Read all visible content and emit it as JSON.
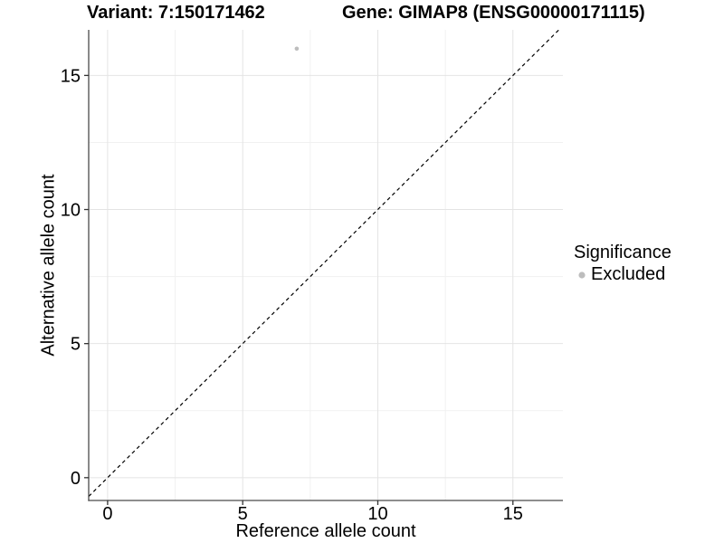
{
  "chart_data": {
    "type": "scatter",
    "title_variant": "Variant: 7:150171462",
    "title_gene": "Gene: GIMAP8 (ENSG00000171115)",
    "xlabel": "Reference allele count",
    "ylabel": "Alternative allele count",
    "xlim": [
      -0.7,
      16.85
    ],
    "ylim": [
      -0.85,
      16.7
    ],
    "xticks": [
      0,
      5,
      10,
      15
    ],
    "yticks": [
      0,
      5,
      10,
      15
    ],
    "xticks_minor": [
      2.5,
      7.5,
      12.5
    ],
    "yticks_minor": [
      2.5,
      7.5,
      12.5
    ],
    "grid": true,
    "points": [
      {
        "x": 7,
        "y": 16,
        "series": "Excluded"
      }
    ],
    "reference_line": {
      "slope": 1,
      "intercept": 0,
      "style": "dashed",
      "color": "#000000"
    },
    "legend": {
      "title": "Significance",
      "position": "right",
      "items": [
        {
          "label": "Excluded",
          "color": "#bdbdbd",
          "marker": "circle"
        }
      ]
    },
    "colors": {
      "point": "#bdbdbd",
      "grid_major": "#e4e4e4",
      "grid_minor": "#f1f1f1",
      "axis_line": "#4a4a4a",
      "tick": "#333333",
      "text": "#000000",
      "background": "#ffffff"
    }
  }
}
